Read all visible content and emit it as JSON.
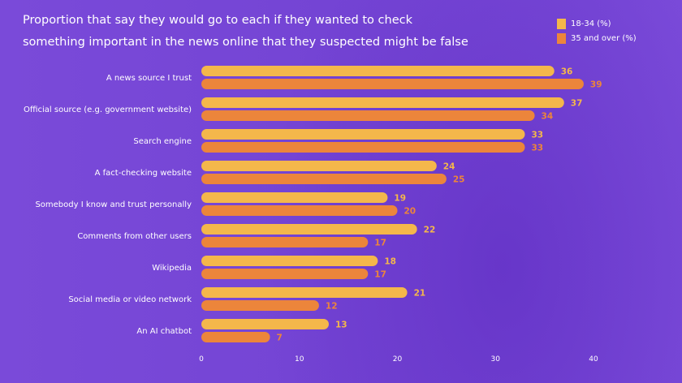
{
  "chart_data": {
    "type": "bar",
    "orientation": "horizontal",
    "title": "Proportion that say they would go to each if they wanted to check something important in the news online that they suspected might be false",
    "title_lines": [
      "Proportion that say they would go to each if they wanted to check",
      "something important in the news online that they suspected might be false"
    ],
    "categories": [
      "A news source I trust",
      "Official source (e.g. government website)",
      "Search engine",
      "A fact-checking website",
      "Somebody I know and trust personally",
      "Comments from other users",
      "Wikipedia",
      "Social media or video network",
      "An AI chatbot"
    ],
    "series": [
      {
        "name": "18-34 (%)",
        "color": "#f4b74b",
        "values": [
          36,
          37,
          33,
          24,
          19,
          22,
          18,
          21,
          13
        ]
      },
      {
        "name": "35 and over (%)",
        "color": "#ec853b",
        "values": [
          39,
          34,
          33,
          25,
          20,
          17,
          17,
          12,
          7
        ]
      }
    ],
    "xlim": [
      0,
      40
    ],
    "xticks": [
      "0",
      "10",
      "20",
      "30",
      "40"
    ],
    "legend": "top-right",
    "grid": false
  }
}
